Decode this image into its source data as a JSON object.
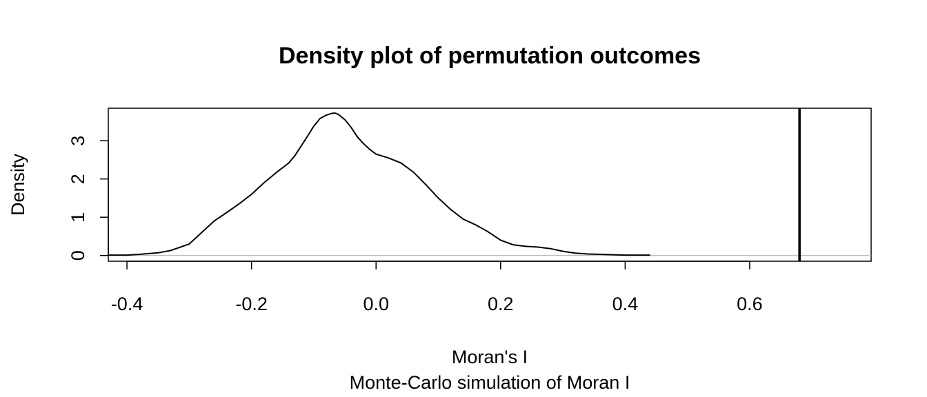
{
  "chart_data": {
    "type": "line",
    "title": "Density plot of permutation outcomes",
    "xlabel": "Moran's I",
    "subtitle": "Monte-Carlo simulation of Moran I",
    "ylabel": "Density",
    "xlim": [
      -0.43,
      0.795
    ],
    "ylim": [
      -0.15,
      3.85
    ],
    "x_ticks": [
      -0.4,
      -0.2,
      0.0,
      0.2,
      0.4,
      0.6
    ],
    "x_tick_labels": [
      "-0.4",
      "-0.2",
      "0.0",
      "0.2",
      "0.4",
      "0.6"
    ],
    "y_ticks": [
      0,
      1,
      2,
      3
    ],
    "y_tick_labels": [
      "0",
      "1",
      "2",
      "3"
    ],
    "grid": false,
    "legend": "none",
    "series": [
      {
        "x": [
          -0.43,
          -0.4,
          -0.38,
          -0.35,
          -0.33,
          -0.3,
          -0.28,
          -0.26,
          -0.24,
          -0.22,
          -0.2,
          -0.18,
          -0.16,
          -0.14,
          -0.13,
          -0.12,
          -0.11,
          -0.1,
          -0.09,
          -0.08,
          -0.07,
          -0.065,
          -0.06,
          -0.05,
          -0.04,
          -0.03,
          -0.02,
          -0.01,
          0.0,
          0.02,
          0.04,
          0.06,
          0.08,
          0.1,
          0.12,
          0.14,
          0.16,
          0.18,
          0.2,
          0.22,
          0.24,
          0.26,
          0.28,
          0.3,
          0.32,
          0.34,
          0.36,
          0.38,
          0.4,
          0.44
        ],
        "y": [
          0.01,
          0.01,
          0.03,
          0.07,
          0.13,
          0.3,
          0.6,
          0.9,
          1.12,
          1.35,
          1.6,
          1.9,
          2.17,
          2.42,
          2.62,
          2.87,
          3.12,
          3.38,
          3.58,
          3.67,
          3.72,
          3.72,
          3.68,
          3.55,
          3.35,
          3.1,
          2.92,
          2.77,
          2.65,
          2.55,
          2.42,
          2.18,
          1.85,
          1.5,
          1.2,
          0.95,
          0.8,
          0.62,
          0.4,
          0.28,
          0.24,
          0.22,
          0.18,
          0.11,
          0.06,
          0.04,
          0.03,
          0.02,
          0.01,
          0.01
        ]
      }
    ],
    "baseline": 0,
    "vline": {
      "x": 0.68
    }
  },
  "colors": {
    "curve": "#000000",
    "baseline": "#bebebe",
    "vline": "#000000",
    "frame": "#000000"
  }
}
